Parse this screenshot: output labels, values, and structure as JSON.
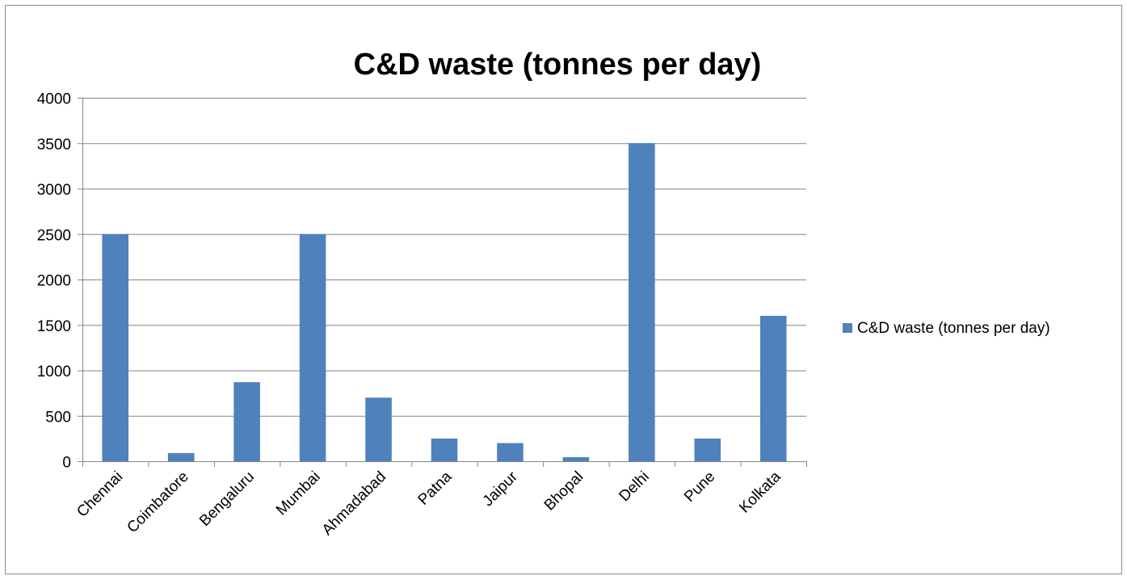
{
  "chart_data": {
    "type": "bar",
    "title": "C&D waste (tonnes per day)",
    "xlabel": "",
    "ylabel": "",
    "categories": [
      "Chennai",
      "Coimbatore",
      "Bengaluru",
      "Mumbai",
      "Ahmadabad",
      "Patna",
      "Jaipur",
      "Bhopal",
      "Delhi",
      "Pune",
      "Kolkata"
    ],
    "series": [
      {
        "name": "C&D waste (tonnes per day)",
        "color": "#4f81bd",
        "values": [
          2500,
          90,
          870,
          2500,
          700,
          250,
          200,
          45,
          3500,
          250,
          1600
        ]
      }
    ],
    "ylim": [
      0,
      4000
    ],
    "yticks": [
      "0",
      "500",
      "1000",
      "1500",
      "2000",
      "2500",
      "3000",
      "3500",
      "4000"
    ],
    "grid": true,
    "legend_position": "right"
  }
}
